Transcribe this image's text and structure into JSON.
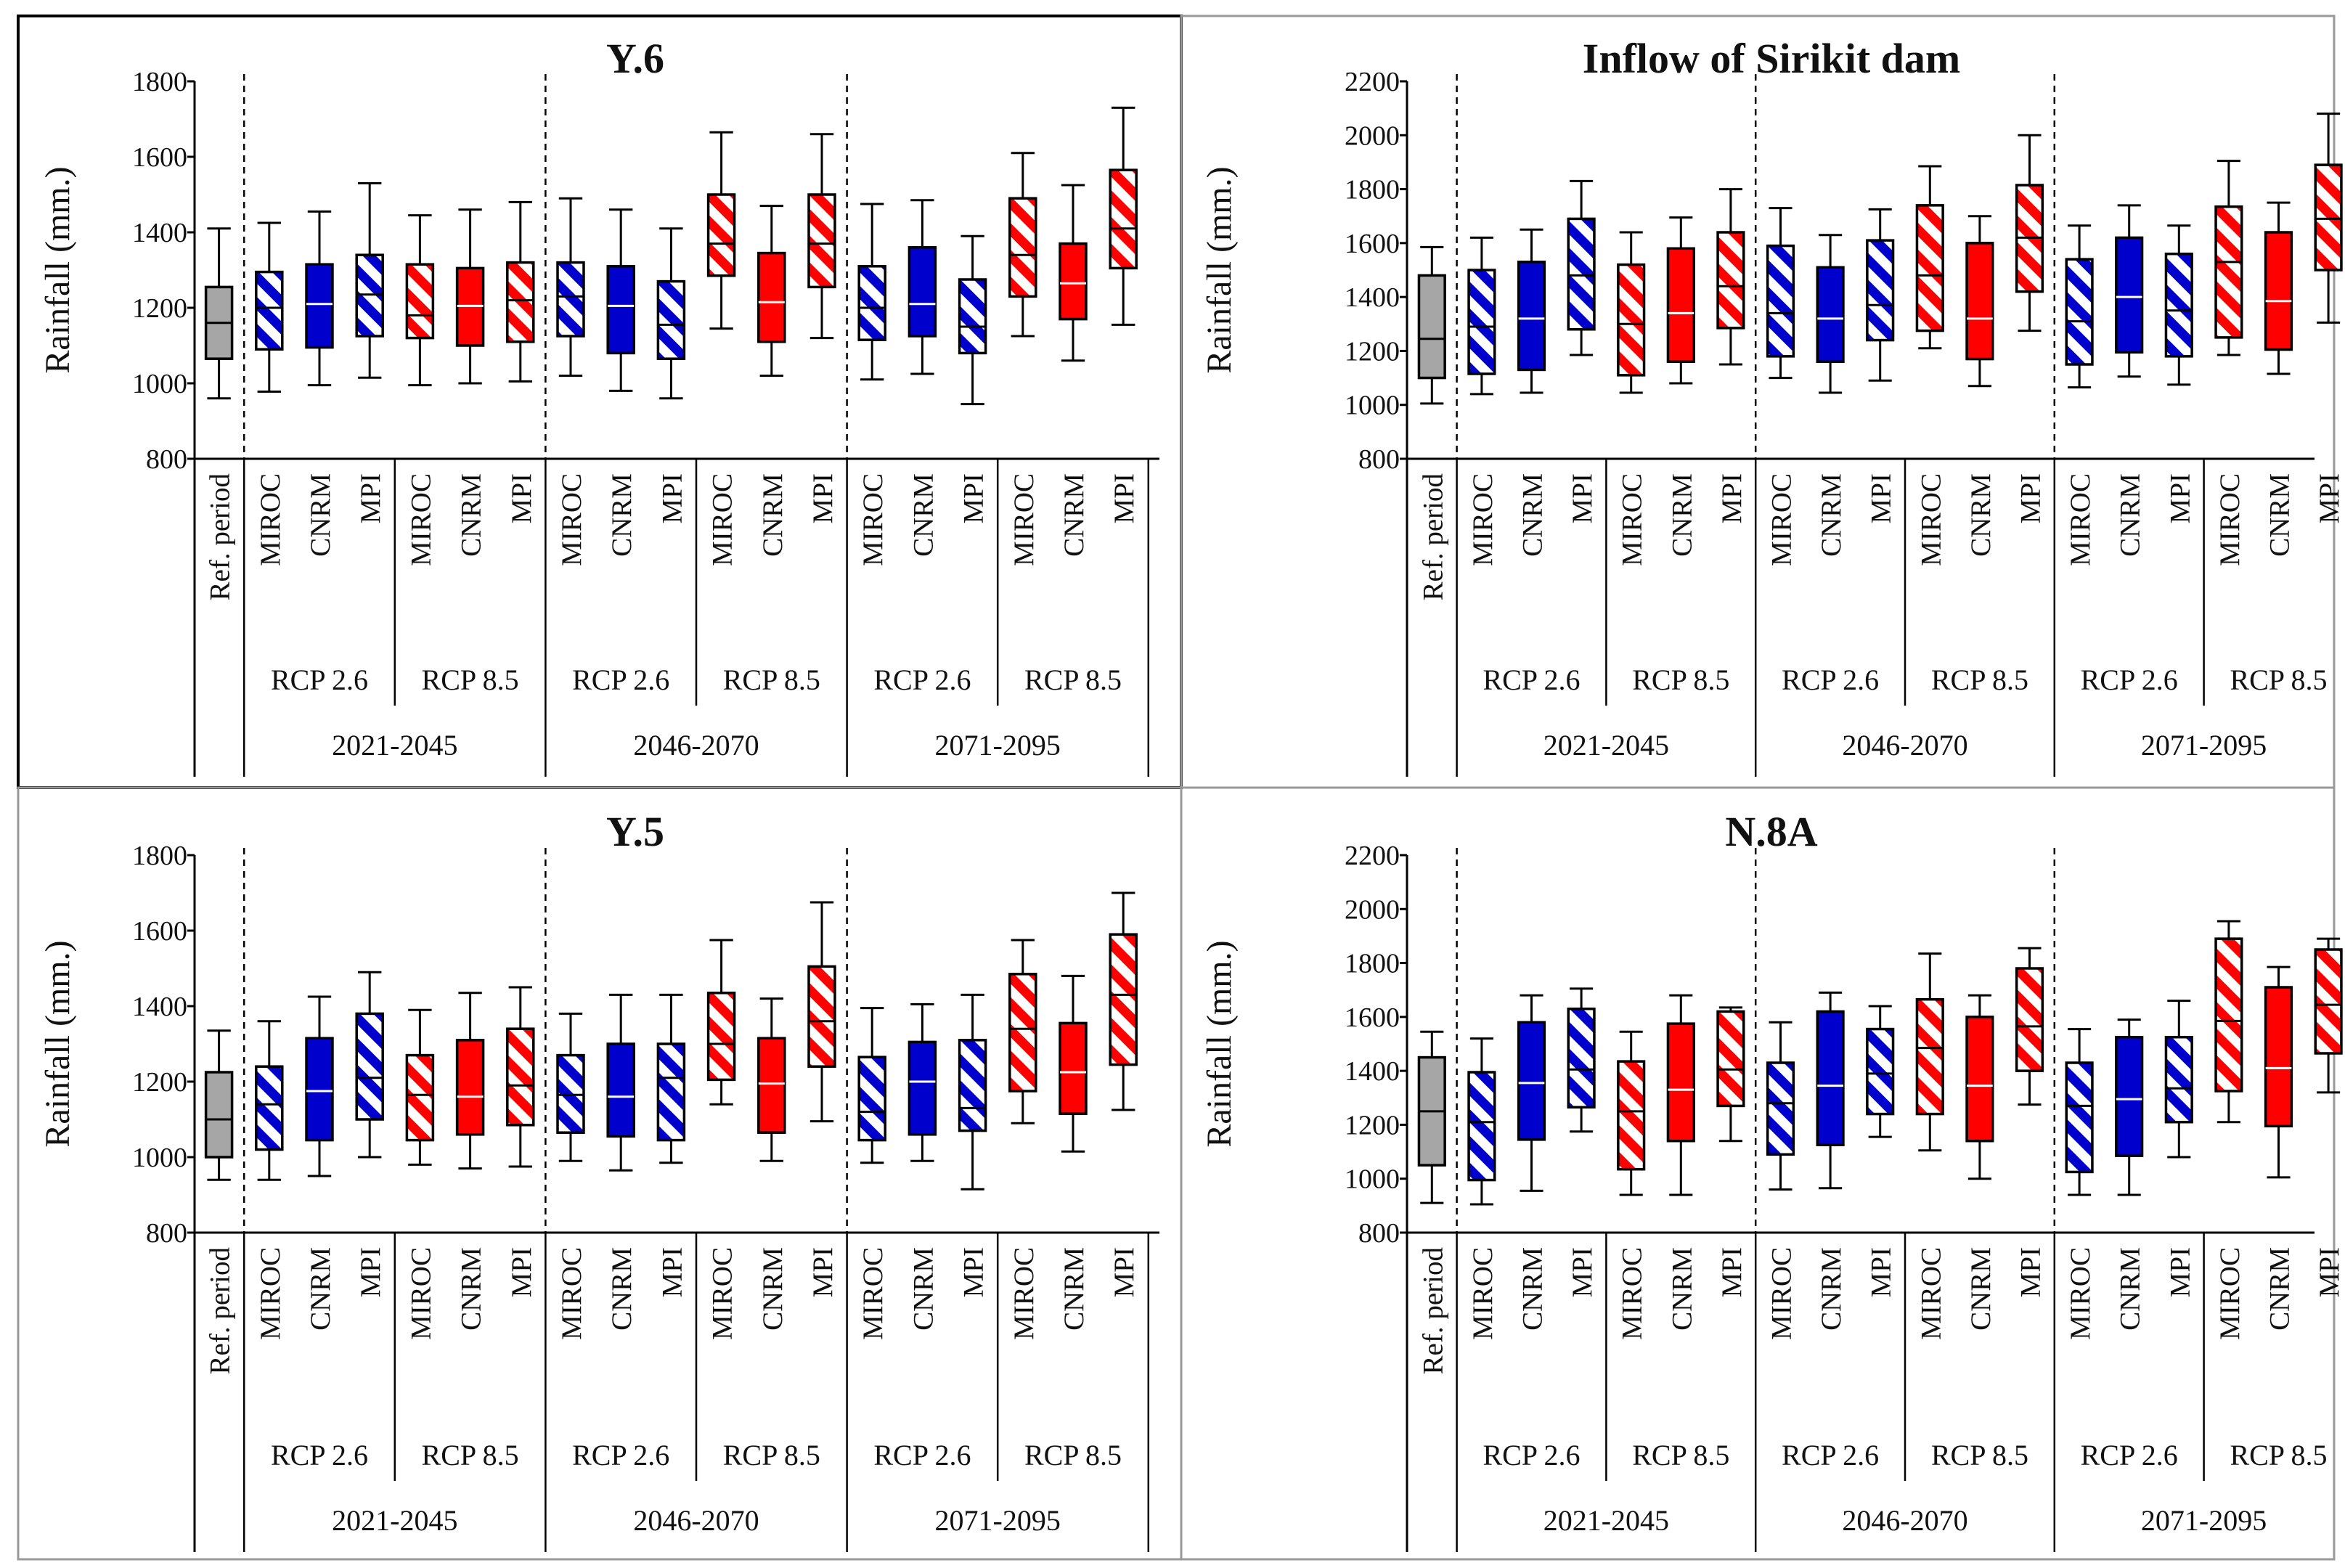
{
  "colors": {
    "ref": "#a6a6a6",
    "blue": "#0000cc",
    "red": "#ff0000"
  },
  "common": {
    "ylabel": "Rainfall (mm.)",
    "ref_label": "Ref. period",
    "models": [
      "MIROC",
      "CNRM",
      "MPI"
    ],
    "model_styles": [
      "hatch",
      "solid",
      "hatch"
    ],
    "rcps": [
      "RCP 2.6",
      "RCP 8.5"
    ],
    "periods": [
      "2021-2045",
      "2046-2070",
      "2071-2095"
    ]
  },
  "chart_data": [
    {
      "type": "box",
      "title": "Y.6",
      "ylim": [
        800,
        1800
      ],
      "yticks": [
        800,
        1000,
        1200,
        1400,
        1600,
        1800
      ],
      "ref": {
        "min": 960,
        "q1": 1065,
        "med": 1160,
        "q3": 1255,
        "max": 1410
      },
      "boxes": [
        {
          "min": 978,
          "q1": 1090,
          "med": 1200,
          "q3": 1295,
          "max": 1425
        },
        {
          "min": 995,
          "q1": 1095,
          "med": 1210,
          "q3": 1315,
          "max": 1455
        },
        {
          "min": 1015,
          "q1": 1125,
          "med": 1235,
          "q3": 1340,
          "max": 1530
        },
        {
          "min": 995,
          "q1": 1120,
          "med": 1180,
          "q3": 1315,
          "max": 1445
        },
        {
          "min": 1000,
          "q1": 1100,
          "med": 1205,
          "q3": 1305,
          "max": 1460
        },
        {
          "min": 1005,
          "q1": 1110,
          "med": 1220,
          "q3": 1320,
          "max": 1480
        },
        {
          "min": 1020,
          "q1": 1125,
          "med": 1230,
          "q3": 1320,
          "max": 1490
        },
        {
          "min": 980,
          "q1": 1080,
          "med": 1205,
          "q3": 1310,
          "max": 1460
        },
        {
          "min": 960,
          "q1": 1065,
          "med": 1155,
          "q3": 1270,
          "max": 1410
        },
        {
          "min": 1145,
          "q1": 1285,
          "med": 1370,
          "q3": 1500,
          "max": 1665
        },
        {
          "min": 1020,
          "q1": 1110,
          "med": 1215,
          "q3": 1345,
          "max": 1470
        },
        {
          "min": 1120,
          "q1": 1255,
          "med": 1370,
          "q3": 1500,
          "max": 1660
        },
        {
          "min": 1010,
          "q1": 1115,
          "med": 1200,
          "q3": 1310,
          "max": 1475
        },
        {
          "min": 1025,
          "q1": 1125,
          "med": 1210,
          "q3": 1360,
          "max": 1485
        },
        {
          "min": 945,
          "q1": 1080,
          "med": 1150,
          "q3": 1275,
          "max": 1390
        },
        {
          "min": 1125,
          "q1": 1230,
          "med": 1340,
          "q3": 1490,
          "max": 1610
        },
        {
          "min": 1060,
          "q1": 1170,
          "med": 1265,
          "q3": 1370,
          "max": 1525
        },
        {
          "min": 1155,
          "q1": 1305,
          "med": 1410,
          "q3": 1565,
          "max": 1730
        }
      ]
    },
    {
      "type": "box",
      "title": "Inflow of Sirikit dam",
      "ylim": [
        800,
        2200
      ],
      "yticks": [
        800,
        1000,
        1200,
        1400,
        1600,
        1800,
        2000,
        2200
      ],
      "ref": {
        "min": 1005,
        "q1": 1100,
        "med": 1245,
        "q3": 1480,
        "max": 1585
      },
      "boxes": [
        {
          "min": 1040,
          "q1": 1115,
          "med": 1290,
          "q3": 1500,
          "max": 1620
        },
        {
          "min": 1045,
          "q1": 1130,
          "med": 1320,
          "q3": 1530,
          "max": 1650
        },
        {
          "min": 1185,
          "q1": 1280,
          "med": 1480,
          "q3": 1690,
          "max": 1830
        },
        {
          "min": 1045,
          "q1": 1110,
          "med": 1300,
          "q3": 1520,
          "max": 1640
        },
        {
          "min": 1080,
          "q1": 1160,
          "med": 1340,
          "q3": 1580,
          "max": 1695
        },
        {
          "min": 1150,
          "q1": 1285,
          "med": 1440,
          "q3": 1640,
          "max": 1800
        },
        {
          "min": 1100,
          "q1": 1180,
          "med": 1340,
          "q3": 1590,
          "max": 1730
        },
        {
          "min": 1045,
          "q1": 1160,
          "med": 1320,
          "q3": 1510,
          "max": 1630
        },
        {
          "min": 1090,
          "q1": 1240,
          "med": 1370,
          "q3": 1610,
          "max": 1725
        },
        {
          "min": 1210,
          "q1": 1275,
          "med": 1480,
          "q3": 1740,
          "max": 1885
        },
        {
          "min": 1070,
          "q1": 1170,
          "med": 1320,
          "q3": 1600,
          "max": 1700
        },
        {
          "min": 1275,
          "q1": 1420,
          "med": 1620,
          "q3": 1815,
          "max": 2000
        },
        {
          "min": 1065,
          "q1": 1150,
          "med": 1310,
          "q3": 1540,
          "max": 1665
        },
        {
          "min": 1105,
          "q1": 1195,
          "med": 1400,
          "q3": 1620,
          "max": 1740
        },
        {
          "min": 1075,
          "q1": 1180,
          "med": 1350,
          "q3": 1560,
          "max": 1665
        },
        {
          "min": 1185,
          "q1": 1250,
          "med": 1530,
          "q3": 1735,
          "max": 1905
        },
        {
          "min": 1115,
          "q1": 1205,
          "med": 1385,
          "q3": 1640,
          "max": 1750
        },
        {
          "min": 1305,
          "q1": 1500,
          "med": 1690,
          "q3": 1890,
          "max": 2080
        }
      ]
    },
    {
      "type": "box",
      "title": "Y.5",
      "ylim": [
        800,
        1800
      ],
      "yticks": [
        800,
        1000,
        1200,
        1400,
        1600,
        1800
      ],
      "ref": {
        "min": 940,
        "q1": 1000,
        "med": 1100,
        "q3": 1225,
        "max": 1335
      },
      "boxes": [
        {
          "min": 940,
          "q1": 1020,
          "med": 1140,
          "q3": 1240,
          "max": 1360
        },
        {
          "min": 950,
          "q1": 1045,
          "med": 1175,
          "q3": 1315,
          "max": 1425
        },
        {
          "min": 1000,
          "q1": 1100,
          "med": 1210,
          "q3": 1380,
          "max": 1490
        },
        {
          "min": 980,
          "q1": 1045,
          "med": 1165,
          "q3": 1270,
          "max": 1390
        },
        {
          "min": 970,
          "q1": 1060,
          "med": 1160,
          "q3": 1310,
          "max": 1435
        },
        {
          "min": 975,
          "q1": 1085,
          "med": 1190,
          "q3": 1340,
          "max": 1450
        },
        {
          "min": 990,
          "q1": 1065,
          "med": 1165,
          "q3": 1270,
          "max": 1380
        },
        {
          "min": 965,
          "q1": 1055,
          "med": 1160,
          "q3": 1300,
          "max": 1430
        },
        {
          "min": 985,
          "q1": 1045,
          "med": 1210,
          "q3": 1300,
          "max": 1430
        },
        {
          "min": 1140,
          "q1": 1205,
          "med": 1300,
          "q3": 1435,
          "max": 1575
        },
        {
          "min": 990,
          "q1": 1065,
          "med": 1195,
          "q3": 1315,
          "max": 1420
        },
        {
          "min": 1095,
          "q1": 1240,
          "med": 1360,
          "q3": 1505,
          "max": 1675
        },
        {
          "min": 985,
          "q1": 1045,
          "med": 1120,
          "q3": 1265,
          "max": 1395
        },
        {
          "min": 990,
          "q1": 1060,
          "med": 1200,
          "q3": 1305,
          "max": 1405
        },
        {
          "min": 915,
          "q1": 1070,
          "med": 1130,
          "q3": 1310,
          "max": 1430
        },
        {
          "min": 1090,
          "q1": 1175,
          "med": 1340,
          "q3": 1485,
          "max": 1575
        },
        {
          "min": 1015,
          "q1": 1115,
          "med": 1225,
          "q3": 1355,
          "max": 1480
        },
        {
          "min": 1125,
          "q1": 1245,
          "med": 1430,
          "q3": 1590,
          "max": 1700
        }
      ]
    },
    {
      "type": "box",
      "title": "N.8A",
      "ylim": [
        800,
        2200
      ],
      "yticks": [
        800,
        1000,
        1200,
        1400,
        1600,
        1800,
        2000,
        2200
      ],
      "ref": {
        "min": 910,
        "q1": 1050,
        "med": 1250,
        "q3": 1450,
        "max": 1545
      },
      "boxes": [
        {
          "min": 905,
          "q1": 995,
          "med": 1210,
          "q3": 1395,
          "max": 1520
        },
        {
          "min": 955,
          "q1": 1145,
          "med": 1355,
          "q3": 1580,
          "max": 1680
        },
        {
          "min": 1175,
          "q1": 1265,
          "med": 1405,
          "q3": 1630,
          "max": 1705
        },
        {
          "min": 940,
          "q1": 1035,
          "med": 1250,
          "q3": 1435,
          "max": 1545
        },
        {
          "min": 940,
          "q1": 1140,
          "med": 1330,
          "q3": 1575,
          "max": 1680
        },
        {
          "min": 1140,
          "q1": 1270,
          "med": 1405,
          "q3": 1620,
          "max": 1635
        },
        {
          "min": 960,
          "q1": 1090,
          "med": 1280,
          "q3": 1430,
          "max": 1580
        },
        {
          "min": 965,
          "q1": 1125,
          "med": 1345,
          "q3": 1620,
          "max": 1690
        },
        {
          "min": 1155,
          "q1": 1240,
          "med": 1390,
          "q3": 1555,
          "max": 1640
        },
        {
          "min": 1105,
          "q1": 1240,
          "med": 1485,
          "q3": 1665,
          "max": 1835
        },
        {
          "min": 1000,
          "q1": 1140,
          "med": 1345,
          "q3": 1600,
          "max": 1680
        },
        {
          "min": 1275,
          "q1": 1400,
          "med": 1565,
          "q3": 1780,
          "max": 1855
        },
        {
          "min": 940,
          "q1": 1025,
          "med": 1270,
          "q3": 1430,
          "max": 1555
        },
        {
          "min": 940,
          "q1": 1085,
          "med": 1295,
          "q3": 1525,
          "max": 1590
        },
        {
          "min": 1080,
          "q1": 1210,
          "med": 1335,
          "q3": 1525,
          "max": 1660
        },
        {
          "min": 1210,
          "q1": 1325,
          "med": 1585,
          "q3": 1890,
          "max": 1955
        },
        {
          "min": 1005,
          "q1": 1195,
          "med": 1410,
          "q3": 1710,
          "max": 1785
        },
        {
          "min": 1320,
          "q1": 1465,
          "med": 1645,
          "q3": 1850,
          "max": 1890
        }
      ]
    }
  ]
}
